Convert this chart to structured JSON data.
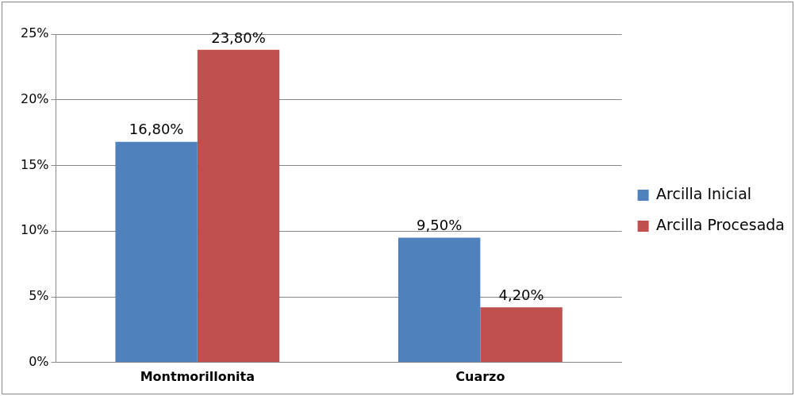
{
  "chart_data": {
    "type": "bar",
    "categories": [
      "Montmorillonita",
      "Cuarzo"
    ],
    "series": [
      {
        "name": "Arcilla Inicial",
        "color": "#4f81bd",
        "values": [
          16.8,
          9.5
        ],
        "value_labels": [
          "16,80%",
          "9,50%"
        ]
      },
      {
        "name": "Arcilla Procesada",
        "color": "#c0504d",
        "values": [
          23.8,
          4.2
        ],
        "value_labels": [
          "23,80%",
          "4,20%"
        ]
      }
    ],
    "ylim": [
      0,
      25
    ],
    "yticks": [
      {
        "value": 0,
        "label": "0%"
      },
      {
        "value": 5,
        "label": "5%"
      },
      {
        "value": 10,
        "label": "10%"
      },
      {
        "value": 15,
        "label": "15%"
      },
      {
        "value": 20,
        "label": "20%"
      },
      {
        "value": 25,
        "label": "25%"
      }
    ],
    "grid": "y",
    "legend": "right"
  }
}
